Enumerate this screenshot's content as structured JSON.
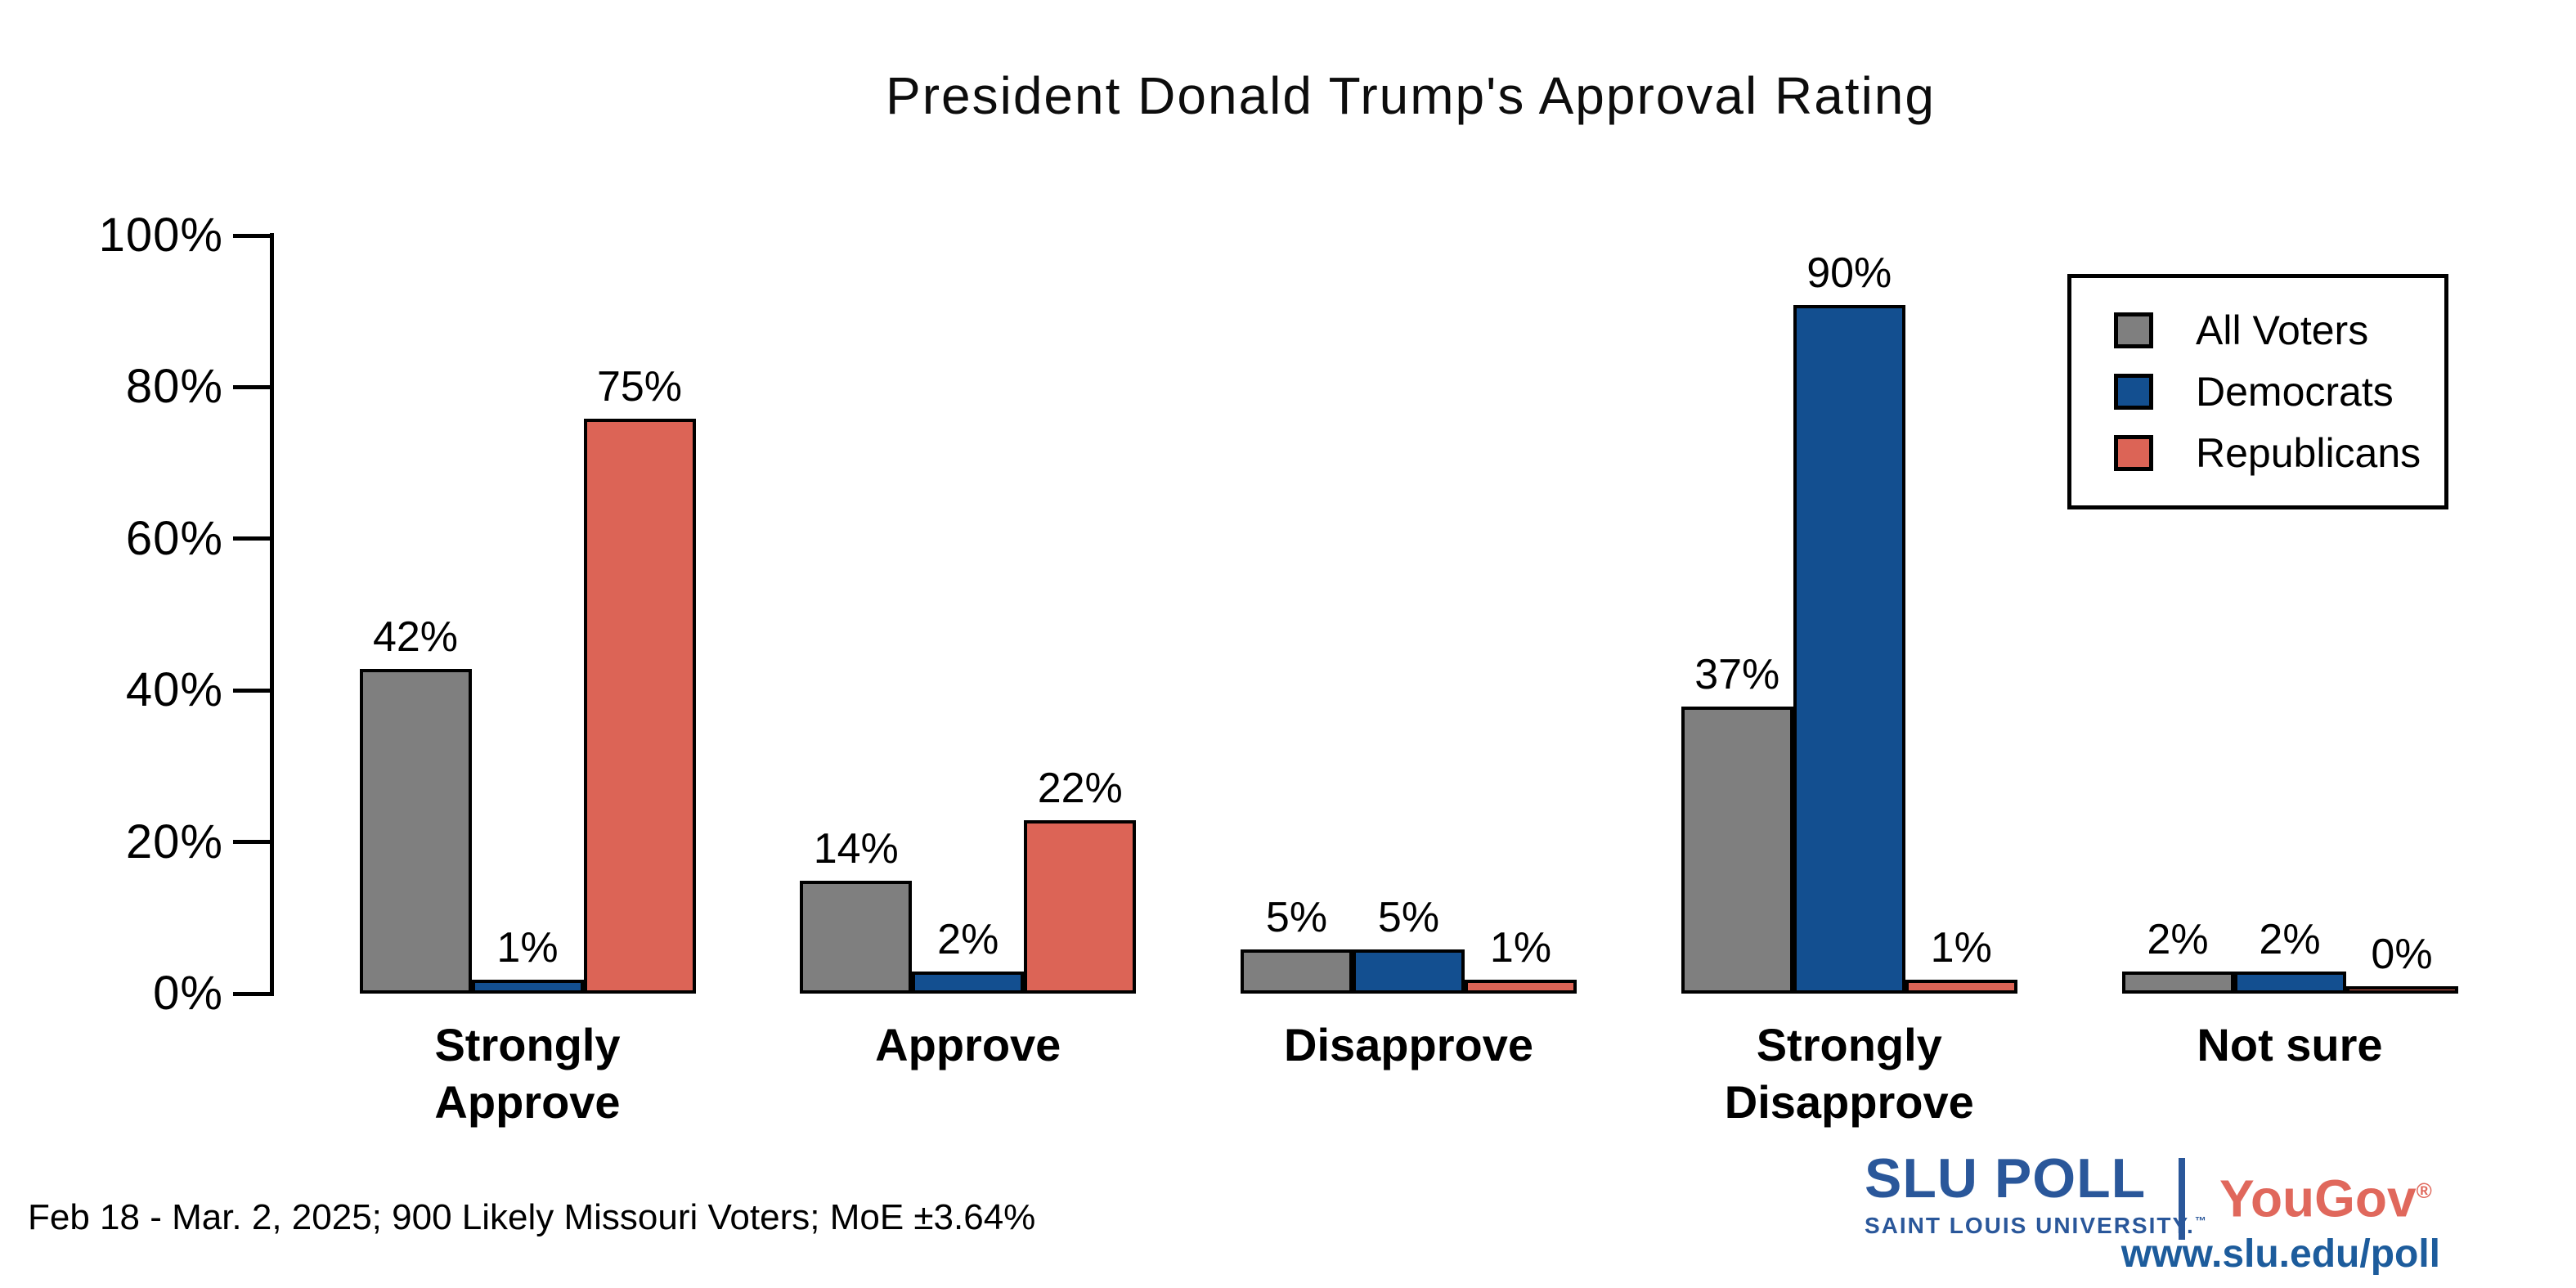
{
  "title": "President Donald Trump's Approval Rating",
  "chart_data": {
    "type": "bar",
    "categories": [
      "Strongly Approve",
      "Approve",
      "Disapprove",
      "Strongly Disapprove",
      "Not sure"
    ],
    "series": [
      {
        "name": "All Voters",
        "color": "#7f7f7f",
        "values": [
          42,
          14,
          5,
          37,
          2
        ]
      },
      {
        "name": "Democrats",
        "color": "#134f90",
        "values": [
          1,
          2,
          5,
          90,
          2
        ]
      },
      {
        "name": "Republicans",
        "color": "#dc6456",
        "values": [
          75,
          22,
          1,
          1,
          0
        ]
      }
    ],
    "value_suffix": "%",
    "y_ticks": [
      "0%",
      "20%",
      "40%",
      "60%",
      "80%",
      "100%"
    ],
    "ylim": [
      0,
      100
    ],
    "grid": "off",
    "legend_position": "top-right",
    "two_line_categories": [
      "Strongly Approve",
      "Strongly Disapprove"
    ],
    "xlabel": "",
    "ylabel": ""
  },
  "footer": {
    "note": "Feb 18 - Mar. 2, 2025; 900 Likely Missouri Voters; MoE ±3.64%",
    "logo": {
      "slu_title": "SLU POLL",
      "slu_subtitle": "SAINT LOUIS UNIVERSITY.",
      "slu_trademark": "™",
      "yougov": "YouGov",
      "yougov_registered": "®",
      "url": "www.slu.edu/poll"
    }
  },
  "colors": {
    "all_voters_gray": "#7f7f7f",
    "democrats_blue": "#134f90",
    "republicans_red": "#dc6456",
    "bar_border": "#000000",
    "slu_blue": "#2a579a",
    "yougov_red": "#e0685c",
    "url_blue": "#1d5c9c"
  }
}
